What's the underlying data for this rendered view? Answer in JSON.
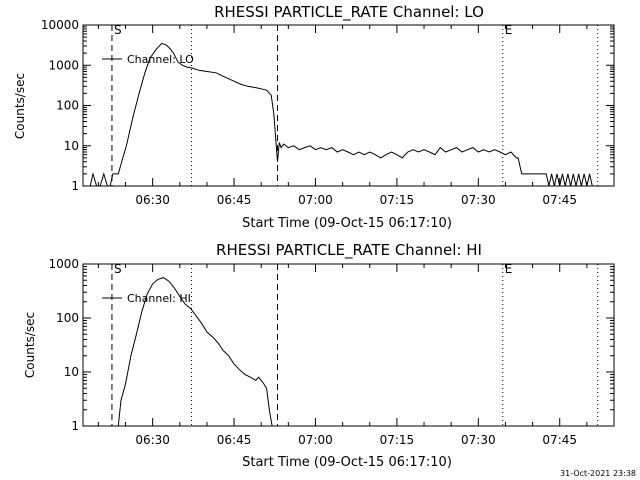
{
  "chart_data": [
    {
      "type": "line",
      "title": "RHESSI PARTICLE_RATE Channel: LO",
      "xlabel": "Start Time (09-Oct-15 06:17:10)",
      "ylabel": "Counts/sec",
      "yscale": "log",
      "ylim": [
        1,
        10000
      ],
      "xlim": [
        "06:17:10",
        "07:55:00"
      ],
      "yticks": [
        "1",
        "10",
        "100",
        "1000",
        "10000"
      ],
      "xticks": [
        "06:30",
        "06:45",
        "07:00",
        "07:15",
        "07:30",
        "07:45"
      ],
      "legend": {
        "position": "top-left",
        "entries": [
          "Channel: LO"
        ]
      },
      "markers": [
        {
          "label": "S",
          "time": "06:22:30",
          "style": "dashed"
        },
        {
          "label": "",
          "time": "06:37:10",
          "style": "dotted"
        },
        {
          "label": "",
          "time": "06:53:00",
          "style": "dashed"
        },
        {
          "label": "E",
          "time": "07:34:30",
          "style": "dotted"
        },
        {
          "label": "",
          "time": "07:52:00",
          "style": "dotted"
        }
      ],
      "series": [
        {
          "name": "Channel: LO",
          "x": [
            "06:17:10",
            "06:18:30",
            "06:19:00",
            "06:19:40",
            "06:20:20",
            "06:21:00",
            "06:21:40",
            "06:22:10",
            "06:22:40",
            "06:23:40",
            "06:24:30",
            "06:25:10",
            "06:26:20",
            "06:27:30",
            "06:28:30",
            "06:29:30",
            "06:30:40",
            "06:31:40",
            "06:32:30",
            "06:33:10",
            "06:33:50",
            "06:34:40",
            "06:35:30",
            "06:36:20",
            "06:37:20",
            "06:38:30",
            "06:40:00",
            "06:41:40",
            "06:43:10",
            "06:44:40",
            "06:46:10",
            "06:47:30",
            "06:48:50",
            "06:50:00",
            "06:51:00",
            "06:51:50",
            "06:52:20",
            "06:52:40",
            "06:53:00",
            "06:53:20",
            "06:53:40",
            "06:54:10",
            "06:55:00",
            "06:56:00",
            "06:57:00",
            "06:58:00",
            "06:59:00",
            "07:00:00",
            "07:01:00",
            "07:02:00",
            "07:03:00",
            "07:04:00",
            "07:05:00",
            "07:06:00",
            "07:07:00",
            "07:08:00",
            "07:09:00",
            "07:10:00",
            "07:11:00",
            "07:12:00",
            "07:13:00",
            "07:14:00",
            "07:15:00",
            "07:16:00",
            "07:17:00",
            "07:18:00",
            "07:19:00",
            "07:20:00",
            "07:21:00",
            "07:22:00",
            "07:23:00",
            "07:24:00",
            "07:25:00",
            "07:26:00",
            "07:27:00",
            "07:28:00",
            "07:29:00",
            "07:30:00",
            "07:31:00",
            "07:32:00",
            "07:33:00",
            "07:34:00",
            "07:35:00",
            "07:36:00",
            "07:37:00",
            "07:37:20",
            "07:38:00",
            "07:39:00",
            "07:40:00",
            "07:41:00",
            "07:42:00",
            "07:42:30",
            "07:43:00",
            "07:43:30",
            "07:44:00",
            "07:44:30",
            "07:45:00",
            "07:45:30",
            "07:46:00",
            "07:46:30",
            "07:47:00",
            "07:47:30",
            "07:48:00",
            "07:48:30",
            "07:49:00",
            "07:49:30",
            "07:50:00",
            "07:50:30",
            "07:51:00",
            "07:52:00"
          ],
          "y": [
            1,
            1,
            2,
            1,
            1,
            2,
            1,
            1,
            2,
            2,
            5,
            10,
            50,
            200,
            600,
            1500,
            2500,
            3500,
            3200,
            2600,
            2000,
            1200,
            1000,
            900,
            850,
            750,
            700,
            650,
            520,
            420,
            340,
            300,
            280,
            260,
            240,
            180,
            60,
            15,
            4,
            12,
            9,
            11,
            9,
            10,
            8,
            9,
            10,
            8,
            9,
            8,
            9,
            7,
            8,
            7,
            6,
            7,
            6,
            7,
            6,
            5,
            6,
            7,
            6,
            5,
            7,
            8,
            7,
            8,
            7,
            6,
            9,
            7,
            8,
            9,
            7,
            8,
            9,
            7,
            8,
            7,
            8,
            7,
            6,
            7,
            5,
            5,
            2,
            2,
            2,
            2,
            2,
            2,
            1,
            2,
            1,
            2,
            1,
            2,
            1,
            2,
            1,
            2,
            1,
            2,
            1,
            2,
            1,
            2,
            1,
            1
          ]
        }
      ]
    },
    {
      "type": "line",
      "title": "RHESSI PARTICLE_RATE Channel: HI",
      "xlabel": "Start Time (09-Oct-15 06:17:10)",
      "ylabel": "Counts/sec",
      "yscale": "log",
      "ylim": [
        1,
        1000
      ],
      "xlim": [
        "06:17:10",
        "07:55:00"
      ],
      "yticks": [
        "1",
        "10",
        "100",
        "1000"
      ],
      "xticks": [
        "06:30",
        "06:45",
        "07:00",
        "07:15",
        "07:30",
        "07:45"
      ],
      "legend": {
        "position": "top-left",
        "entries": [
          "Channel: HI"
        ]
      },
      "markers": [
        {
          "label": "S",
          "time": "06:22:30",
          "style": "dashed"
        },
        {
          "label": "",
          "time": "06:37:10",
          "style": "dotted"
        },
        {
          "label": "",
          "time": "06:53:00",
          "style": "dashed"
        },
        {
          "label": "E",
          "time": "07:34:30",
          "style": "dotted"
        },
        {
          "label": "",
          "time": "07:52:00",
          "style": "dotted"
        }
      ],
      "series": [
        {
          "name": "Channel: HI",
          "x": [
            "06:23:40",
            "06:24:10",
            "06:25:00",
            "06:26:00",
            "06:27:00",
            "06:28:00",
            "06:29:00",
            "06:30:00",
            "06:31:00",
            "06:32:00",
            "06:33:00",
            "06:34:00",
            "06:35:00",
            "06:36:00",
            "06:37:00",
            "06:38:00",
            "06:39:00",
            "06:40:00",
            "06:41:00",
            "06:42:00",
            "06:43:00",
            "06:44:00",
            "06:45:00",
            "06:46:00",
            "06:47:00",
            "06:48:00",
            "06:49:00",
            "06:49:30",
            "06:50:00",
            "06:50:30",
            "06:51:00",
            "06:51:30",
            "06:52:00"
          ],
          "y": [
            1,
            3,
            6,
            20,
            50,
            130,
            280,
            430,
            520,
            560,
            480,
            360,
            250,
            180,
            150,
            110,
            80,
            55,
            45,
            35,
            25,
            20,
            14,
            11,
            9,
            8,
            7,
            8,
            7,
            6,
            5,
            2,
            1
          ]
        }
      ]
    }
  ],
  "timestamp": "31-Oct-2021 23:38"
}
